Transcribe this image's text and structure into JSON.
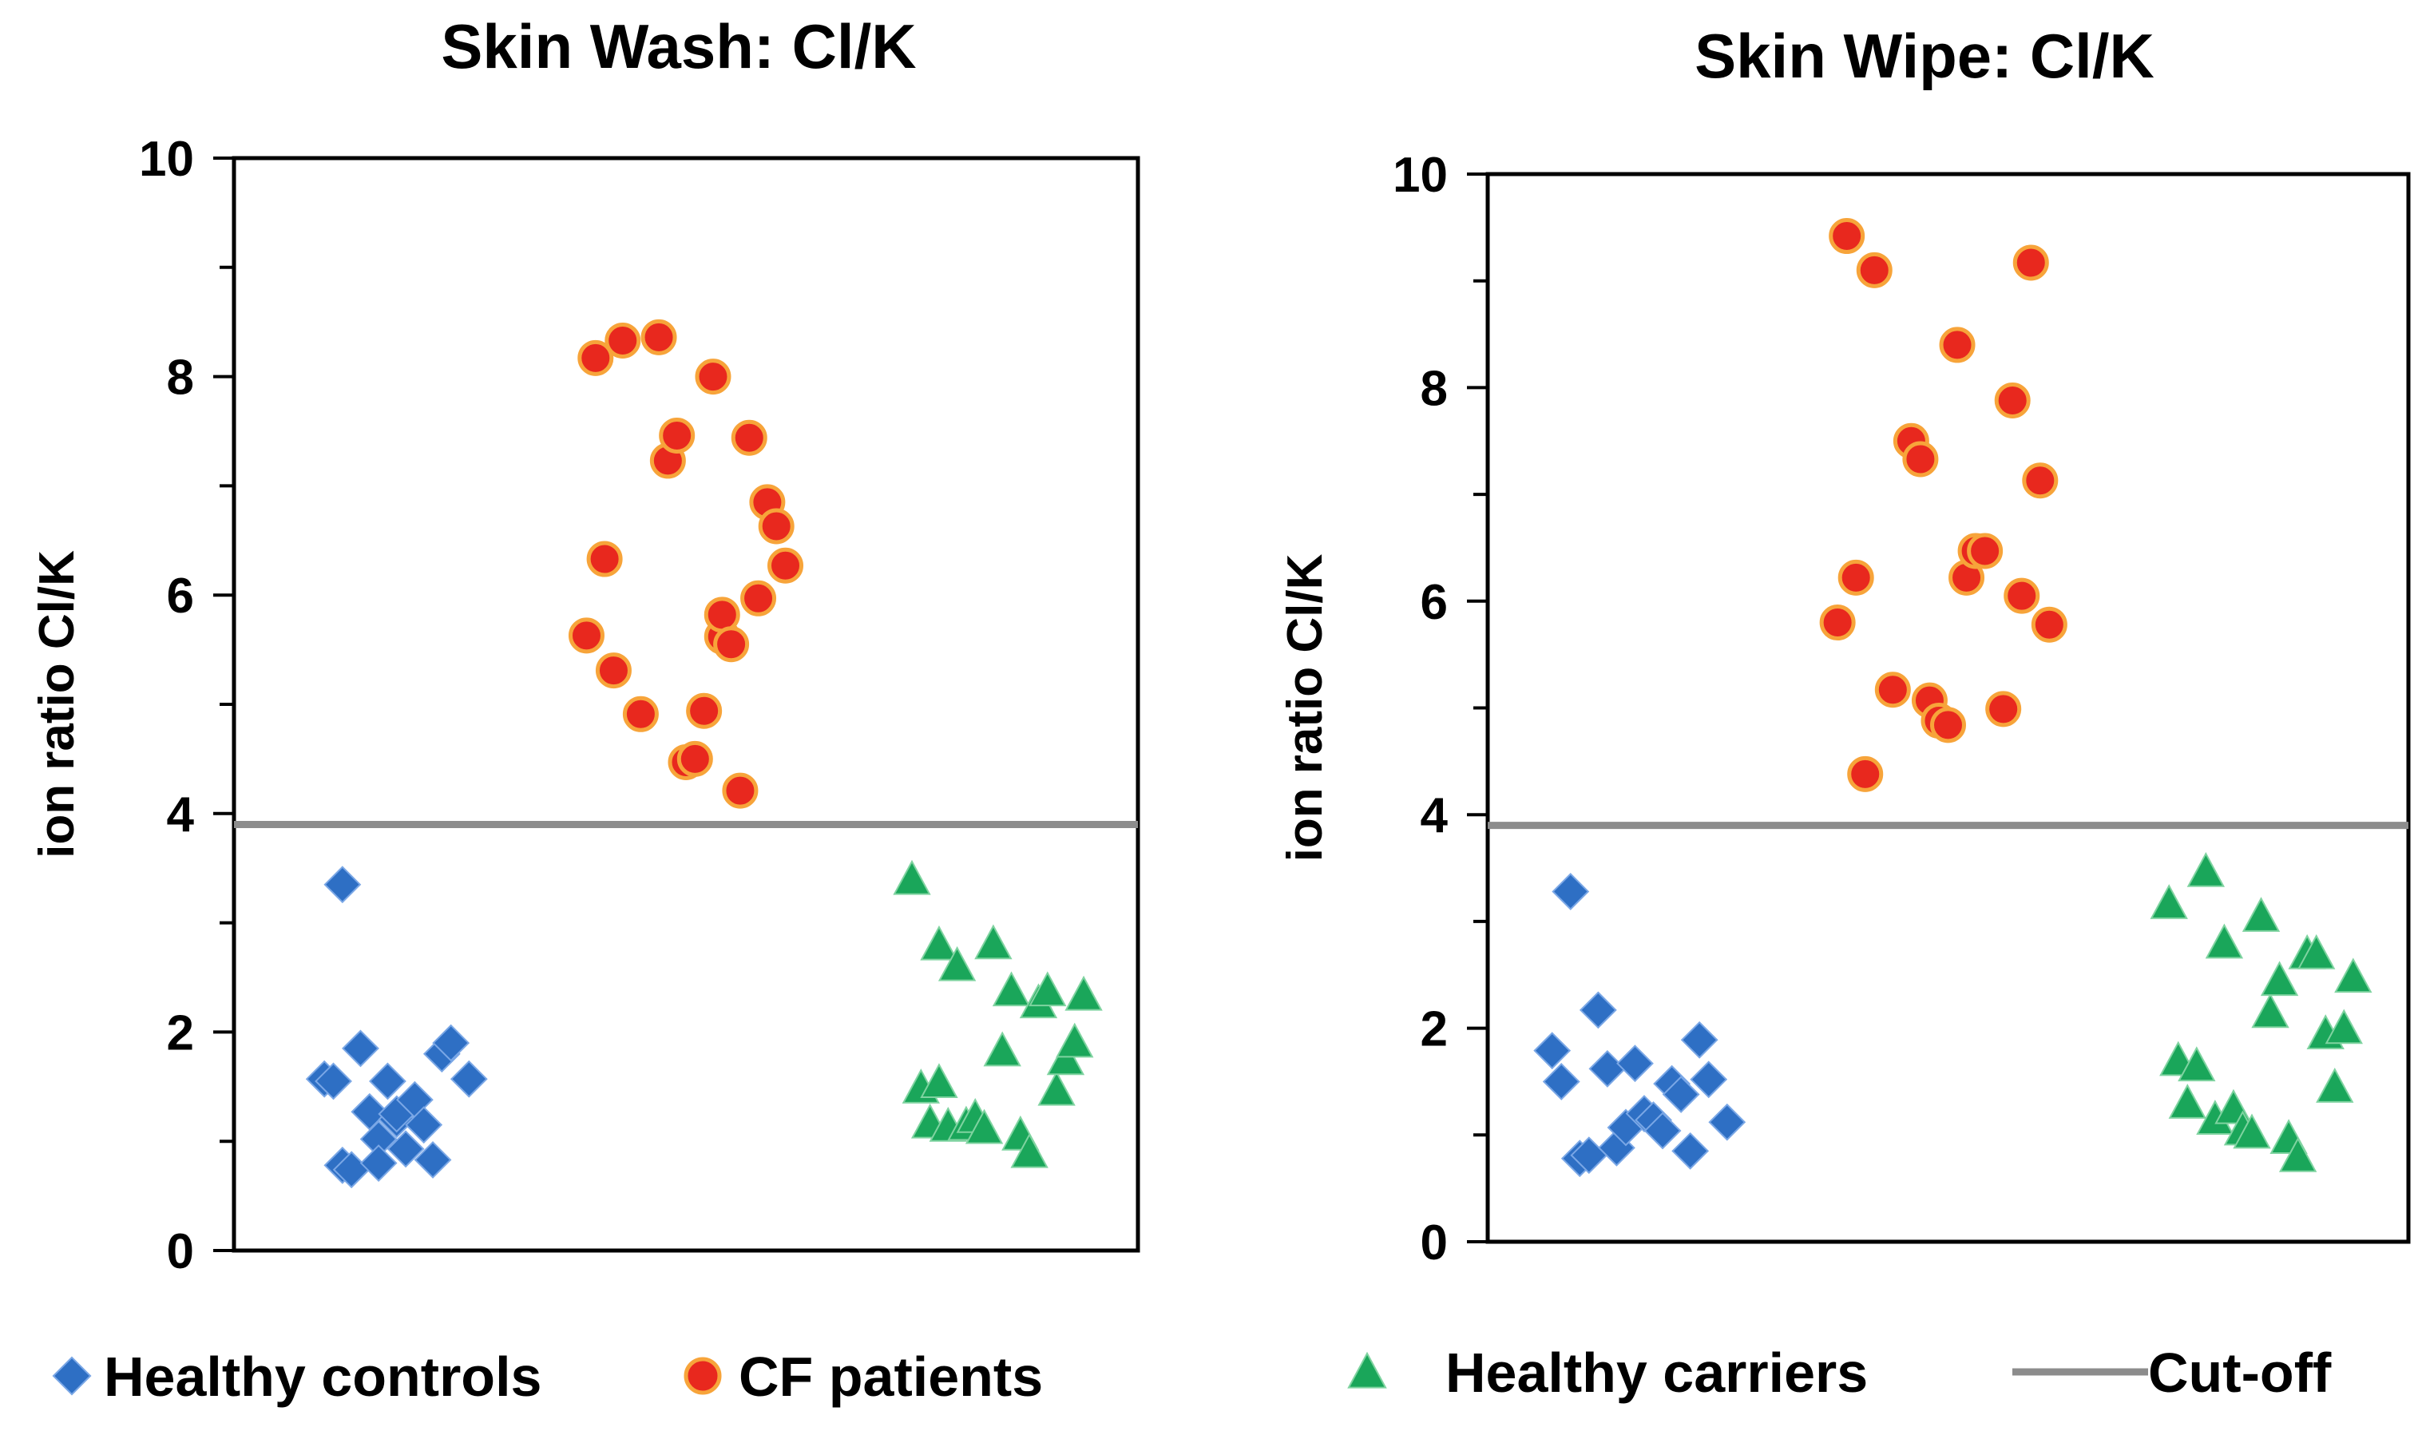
{
  "chart_data": [
    {
      "type": "scatter",
      "title": "Skin Wash: Cl/K",
      "ylabel": "ion ratio Cl/K",
      "xlabel": "",
      "ylim": [
        0,
        10
      ],
      "yticks": [
        "0",
        "2",
        "4",
        "6",
        "8",
        "10"
      ],
      "cutoff": 3.9,
      "series": [
        {
          "name": "Healthy controls",
          "color": "#2e6fc4",
          "marker": "diamond",
          "points": [
            [
              0.1,
              1.57
            ],
            [
              0.11,
              1.55
            ],
            [
              0.12,
              3.35
            ],
            [
              0.12,
              0.78
            ],
            [
              0.13,
              0.74
            ],
            [
              0.14,
              1.85
            ],
            [
              0.15,
              1.27
            ],
            [
              0.16,
              1.02
            ],
            [
              0.16,
              0.8
            ],
            [
              0.17,
              1.55
            ],
            [
              0.18,
              1.2
            ],
            [
              0.18,
              1.25
            ],
            [
              0.19,
              0.93
            ],
            [
              0.2,
              1.38
            ],
            [
              0.21,
              1.15
            ],
            [
              0.22,
              0.83
            ],
            [
              0.23,
              1.8
            ],
            [
              0.24,
              1.9
            ],
            [
              0.26,
              1.57
            ]
          ]
        },
        {
          "name": "CF patients",
          "color": "#e8281e",
          "marker": "circle",
          "points": [
            [
              0.39,
              5.63
            ],
            [
              0.4,
              8.17
            ],
            [
              0.41,
              6.33
            ],
            [
              0.42,
              5.31
            ],
            [
              0.43,
              8.33
            ],
            [
              0.45,
              4.91
            ],
            [
              0.47,
              8.36
            ],
            [
              0.48,
              7.23
            ],
            [
              0.49,
              7.46
            ],
            [
              0.5,
              4.47
            ],
            [
              0.51,
              4.5
            ],
            [
              0.52,
              4.94
            ],
            [
              0.53,
              8.0
            ],
            [
              0.54,
              5.62
            ],
            [
              0.54,
              5.82
            ],
            [
              0.55,
              5.55
            ],
            [
              0.56,
              4.21
            ],
            [
              0.57,
              7.44
            ],
            [
              0.58,
              5.97
            ],
            [
              0.59,
              6.85
            ],
            [
              0.6,
              6.63
            ],
            [
              0.61,
              6.27
            ]
          ]
        },
        {
          "name": "Healthy carriers",
          "color": "#1aa65a",
          "marker": "triangle",
          "points": [
            [
              0.75,
              3.4
            ],
            [
              0.76,
              1.49
            ],
            [
              0.77,
              1.17
            ],
            [
              0.78,
              1.54
            ],
            [
              0.78,
              2.8
            ],
            [
              0.79,
              1.14
            ],
            [
              0.8,
              2.61
            ],
            [
              0.81,
              1.15
            ],
            [
              0.82,
              1.22
            ],
            [
              0.83,
              1.12
            ],
            [
              0.84,
              2.81
            ],
            [
              0.85,
              1.83
            ],
            [
              0.86,
              2.38
            ],
            [
              0.87,
              1.06
            ],
            [
              0.88,
              0.9
            ],
            [
              0.89,
              2.27
            ],
            [
              0.9,
              2.38
            ],
            [
              0.91,
              1.47
            ],
            [
              0.92,
              1.75
            ],
            [
              0.93,
              1.91
            ],
            [
              0.94,
              2.34
            ]
          ]
        }
      ]
    },
    {
      "type": "scatter",
      "title": "Skin Wipe: Cl/K",
      "ylabel": "ion ratio Cl/K",
      "xlabel": "",
      "ylim": [
        0,
        10
      ],
      "yticks": [
        "0",
        "2",
        "4",
        "6",
        "8",
        "10"
      ],
      "cutoff": 3.9,
      "series": [
        {
          "name": "Healthy controls",
          "color": "#2e6fc4",
          "marker": "diamond",
          "points": [
            [
              0.07,
              1.79
            ],
            [
              0.08,
              1.5
            ],
            [
              0.09,
              3.28
            ],
            [
              0.1,
              0.78
            ],
            [
              0.11,
              0.81
            ],
            [
              0.12,
              2.17
            ],
            [
              0.13,
              1.62
            ],
            [
              0.14,
              0.88
            ],
            [
              0.15,
              1.07
            ],
            [
              0.16,
              1.67
            ],
            [
              0.17,
              1.2
            ],
            [
              0.18,
              1.14
            ],
            [
              0.19,
              1.04
            ],
            [
              0.2,
              1.48
            ],
            [
              0.21,
              1.38
            ],
            [
              0.22,
              0.85
            ],
            [
              0.23,
              1.89
            ],
            [
              0.24,
              1.52
            ],
            [
              0.26,
              1.12
            ]
          ]
        },
        {
          "name": "CF patients",
          "color": "#e8281e",
          "marker": "circle",
          "points": [
            [
              0.38,
              5.8
            ],
            [
              0.39,
              9.42
            ],
            [
              0.4,
              6.22
            ],
            [
              0.41,
              4.38
            ],
            [
              0.42,
              9.1
            ],
            [
              0.44,
              5.17
            ],
            [
              0.46,
              7.5
            ],
            [
              0.47,
              7.33
            ],
            [
              0.48,
              5.07
            ],
            [
              0.49,
              4.88
            ],
            [
              0.5,
              4.84
            ],
            [
              0.51,
              8.4
            ],
            [
              0.52,
              6.22
            ],
            [
              0.53,
              6.47
            ],
            [
              0.54,
              6.47
            ],
            [
              0.56,
              4.99
            ],
            [
              0.57,
              7.88
            ],
            [
              0.58,
              6.05
            ],
            [
              0.59,
              9.17
            ],
            [
              0.6,
              7.13
            ],
            [
              0.61,
              5.78
            ]
          ]
        },
        {
          "name": "Healthy carriers",
          "color": "#1aa65a",
          "marker": "triangle",
          "points": [
            [
              0.74,
              3.17
            ],
            [
              0.75,
              1.7
            ],
            [
              0.76,
              1.3
            ],
            [
              0.77,
              1.65
            ],
            [
              0.78,
              3.47
            ],
            [
              0.79,
              1.15
            ],
            [
              0.8,
              2.8
            ],
            [
              0.81,
              1.25
            ],
            [
              0.82,
              1.05
            ],
            [
              0.83,
              1.02
            ],
            [
              0.84,
              3.05
            ],
            [
              0.85,
              2.15
            ],
            [
              0.86,
              2.45
            ],
            [
              0.87,
              0.97
            ],
            [
              0.88,
              0.8
            ],
            [
              0.89,
              2.7
            ],
            [
              0.9,
              2.7
            ],
            [
              0.91,
              1.95
            ],
            [
              0.92,
              1.45
            ],
            [
              0.93,
              2.0
            ],
            [
              0.94,
              2.48
            ]
          ]
        }
      ]
    }
  ],
  "legend": [
    {
      "label": "Healthy controls",
      "marker": "diamond",
      "color": "#2e6fc4"
    },
    {
      "label": "CF patients",
      "marker": "circle",
      "color": "#e8281e"
    },
    {
      "label": "Healthy carriers",
      "marker": "triangle",
      "color": "#1aa65a"
    },
    {
      "label": "Cut-off",
      "marker": "line",
      "color": "#8c8c8c"
    }
  ]
}
